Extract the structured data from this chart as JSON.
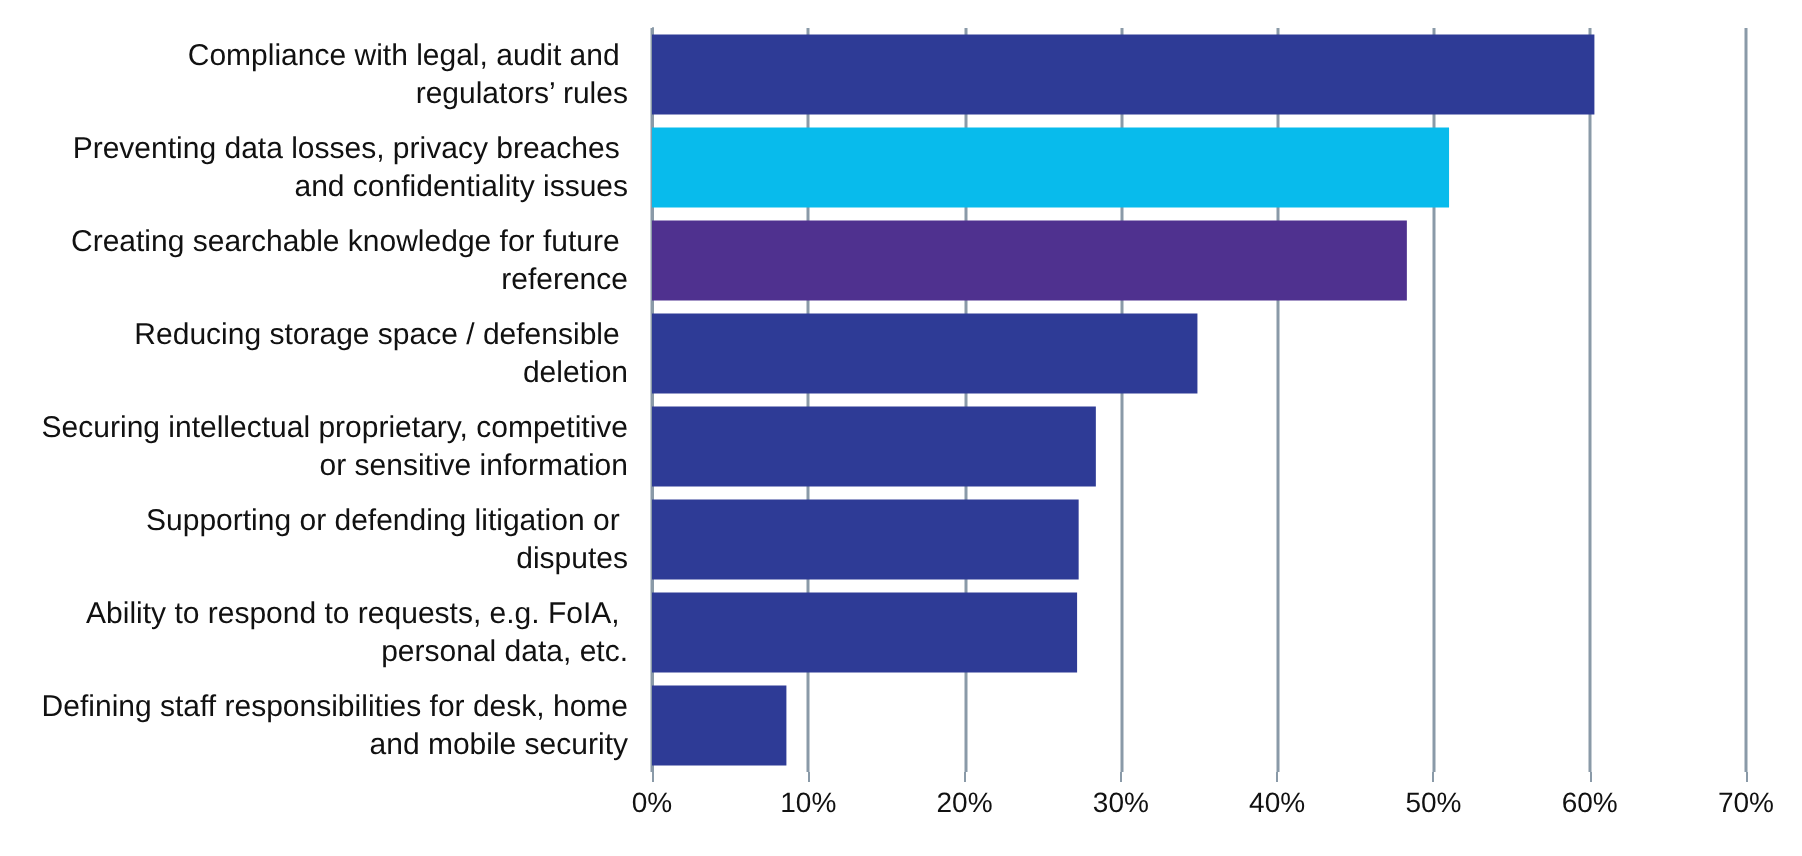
{
  "chart_data": {
    "type": "bar",
    "orientation": "horizontal",
    "categories": [
      "Compliance with legal, audit and regulators’ rules",
      "Preventing data losses, privacy breaches and confidentiality issues",
      "Creating searchable knowledge for future reference",
      "Reducing storage space / defensible deletion",
      "Securing intellectual proprietary, competitive or sensitive information",
      "Supporting or defending litigation or disputes",
      "Ability to respond to requests, e.g. FoIA, personal data, etc.",
      "Defining staff responsibilities for desk, home and mobile security"
    ],
    "values": [
      60.3,
      51.0,
      48.3,
      34.9,
      28.4,
      27.3,
      27.2,
      8.6
    ],
    "colors": [
      "#2e3b96",
      "#08bbec",
      "#4f318f",
      "#2e3b96",
      "#2e3b96",
      "#2e3b96",
      "#2e3b96",
      "#2e3b96"
    ],
    "xlim": [
      0,
      70
    ],
    "xticks": [
      {
        "value": 0,
        "label": "0%"
      },
      {
        "value": 10,
        "label": "10%"
      },
      {
        "value": 20,
        "label": "20%"
      },
      {
        "value": 30,
        "label": "30%"
      },
      {
        "value": 40,
        "label": "40%"
      },
      {
        "value": 50,
        "label": "50%"
      },
      {
        "value": 60,
        "label": "60%"
      },
      {
        "value": 70,
        "label": "70%"
      }
    ],
    "grid": "x"
  }
}
